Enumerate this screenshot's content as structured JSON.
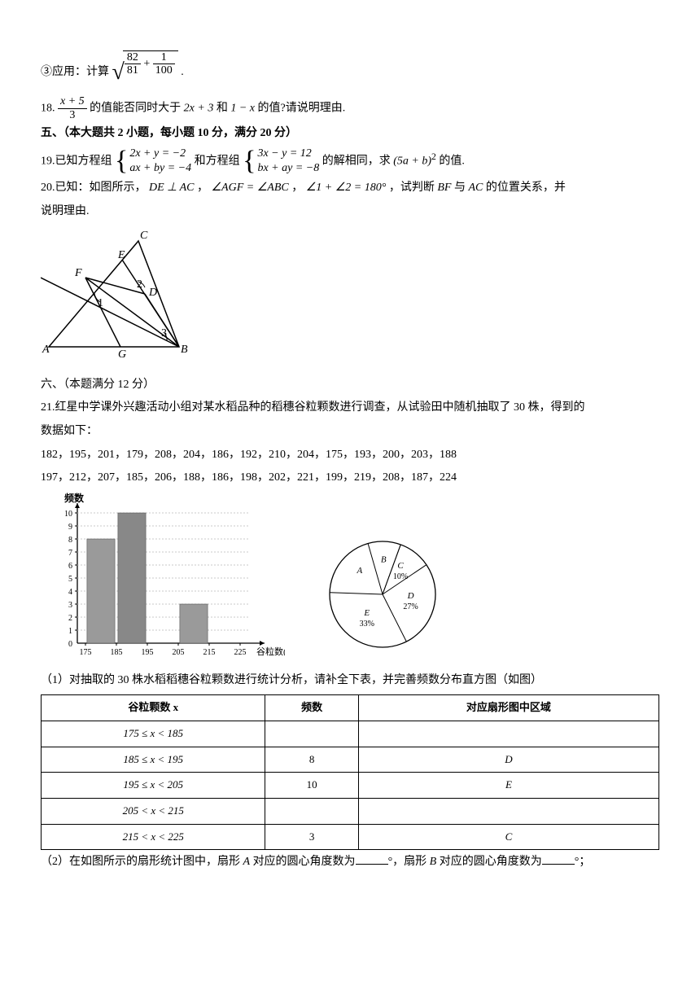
{
  "q17": {
    "prefix": "③应用：计算",
    "frac1_num": "82",
    "frac1_den": "81",
    "frac2_num": "1",
    "frac2_den": "100",
    "suffix": "."
  },
  "q18": {
    "num_label": "18.",
    "frac_num": "x + 5",
    "frac_den": "3",
    "mid1": "的值能否同时大于",
    "expr1": "2x + 3",
    "mid2": "和",
    "expr2": "1 − x",
    "mid3": "的值?请说明理由."
  },
  "section5": "五、（本大题共 2 小题，每小题 10 分，满分 20 分）",
  "q19": {
    "num_label": "19.已知方程组",
    "sys1_r1": "2x + y = −2",
    "sys1_r2": "ax + by = −4",
    "mid1": "和方程组",
    "sys2_r1": "3x − y = 12",
    "sys2_r2": "bx + ay = −8",
    "mid2": "的解相同，求",
    "expr": "(5a + b)",
    "sup": "2",
    "mid3": "的值."
  },
  "q20": {
    "num_label": "20.已知：如图所示，",
    "e1": "DE ⊥ AC",
    "c1": "，",
    "e2": "∠AGF = ∠ABC",
    "c2": "，",
    "e3": "∠1 + ∠2 = 180°",
    "c3": "，试判断 ",
    "bf": "BF",
    "mid": " 与 ",
    "ac": "AC",
    "tail": " 的位置关系，并",
    "line2": "说明理由.",
    "fig": {
      "labels": {
        "A": "A",
        "B": "B",
        "C": "C",
        "D": "D",
        "E": "E",
        "F": "F",
        "G": "G",
        "n1": "1",
        "n2": "2",
        "n3": "3"
      }
    }
  },
  "section6": "六、（本题满分 12 分）",
  "q21": {
    "intro1": "21.红星中学课外兴趣活动小组对某水稻品种的稻穗谷粒颗数进行调查，从试验田中随机抽取了 30 株，得到的",
    "intro2": "数据如下：",
    "data_row1": "182，195，201，179，208，204，186，192，210，204，175，193，200，203，188",
    "data_row2": "197，212，207，185，206，188，186，198，202，221，199，219，208，187，224",
    "hist": {
      "ylabel": "频数",
      "xlabel": "谷粒数(颗)",
      "yticks": [
        "1",
        "2",
        "3",
        "4",
        "5",
        "6",
        "7",
        "8",
        "9",
        "10"
      ],
      "xticks": [
        "175",
        "185",
        "195",
        "205",
        "215",
        "225"
      ],
      "bars": [
        {
          "x": 1,
          "h": 8,
          "color": "#9a9a9a"
        },
        {
          "x": 2,
          "h": 10,
          "color": "#888888"
        },
        {
          "x": 4,
          "h": 3,
          "color": "#9a9a9a"
        }
      ],
      "bar_width": 0.9,
      "ymax": 10,
      "bg": "#ffffff",
      "grid_color": "#c9c9c9",
      "axis_color": "#000000"
    },
    "pie": {
      "slices": [
        {
          "label": "C",
          "text": "10%",
          "pct": 10
        },
        {
          "label": "D",
          "text": "27%",
          "pct": 27
        },
        {
          "label": "E",
          "text": "33%",
          "pct": 33
        },
        {
          "label": "A",
          "text": "",
          "pct": 20
        },
        {
          "label": "B",
          "text": "",
          "pct": 10
        }
      ],
      "stroke": "#000000",
      "fill": "#ffffff",
      "font_size": 11
    },
    "sub1": "（1）对抽取的 30 株水稻稻穗谷粒颗数进行统计分析，请补全下表，并完善频数分布直方图（如图）",
    "table": {
      "headers": [
        "谷粒颗数 x",
        "频数",
        "对应扇形图中区域"
      ],
      "rows": [
        {
          "range": "175 ≤ x < 185",
          "freq": "",
          "region": ""
        },
        {
          "range": "185 ≤ x < 195",
          "freq": "8",
          "region": "D"
        },
        {
          "range": "195 ≤ x < 205",
          "freq": "10",
          "region": "E"
        },
        {
          "range": "205 < x < 215",
          "freq": "",
          "region": ""
        },
        {
          "range": "215 < x < 225",
          "freq": "3",
          "region": "C"
        }
      ]
    },
    "sub2_a": "（2）在如图所示的扇形统计图中，扇形 ",
    "sub2_b": "A",
    "sub2_c": " 对应的圆心角度数为",
    "sub2_d": "°，扇形 ",
    "sub2_e": "B",
    "sub2_f": " 对应的圆心角度数为",
    "sub2_g": "°；"
  }
}
